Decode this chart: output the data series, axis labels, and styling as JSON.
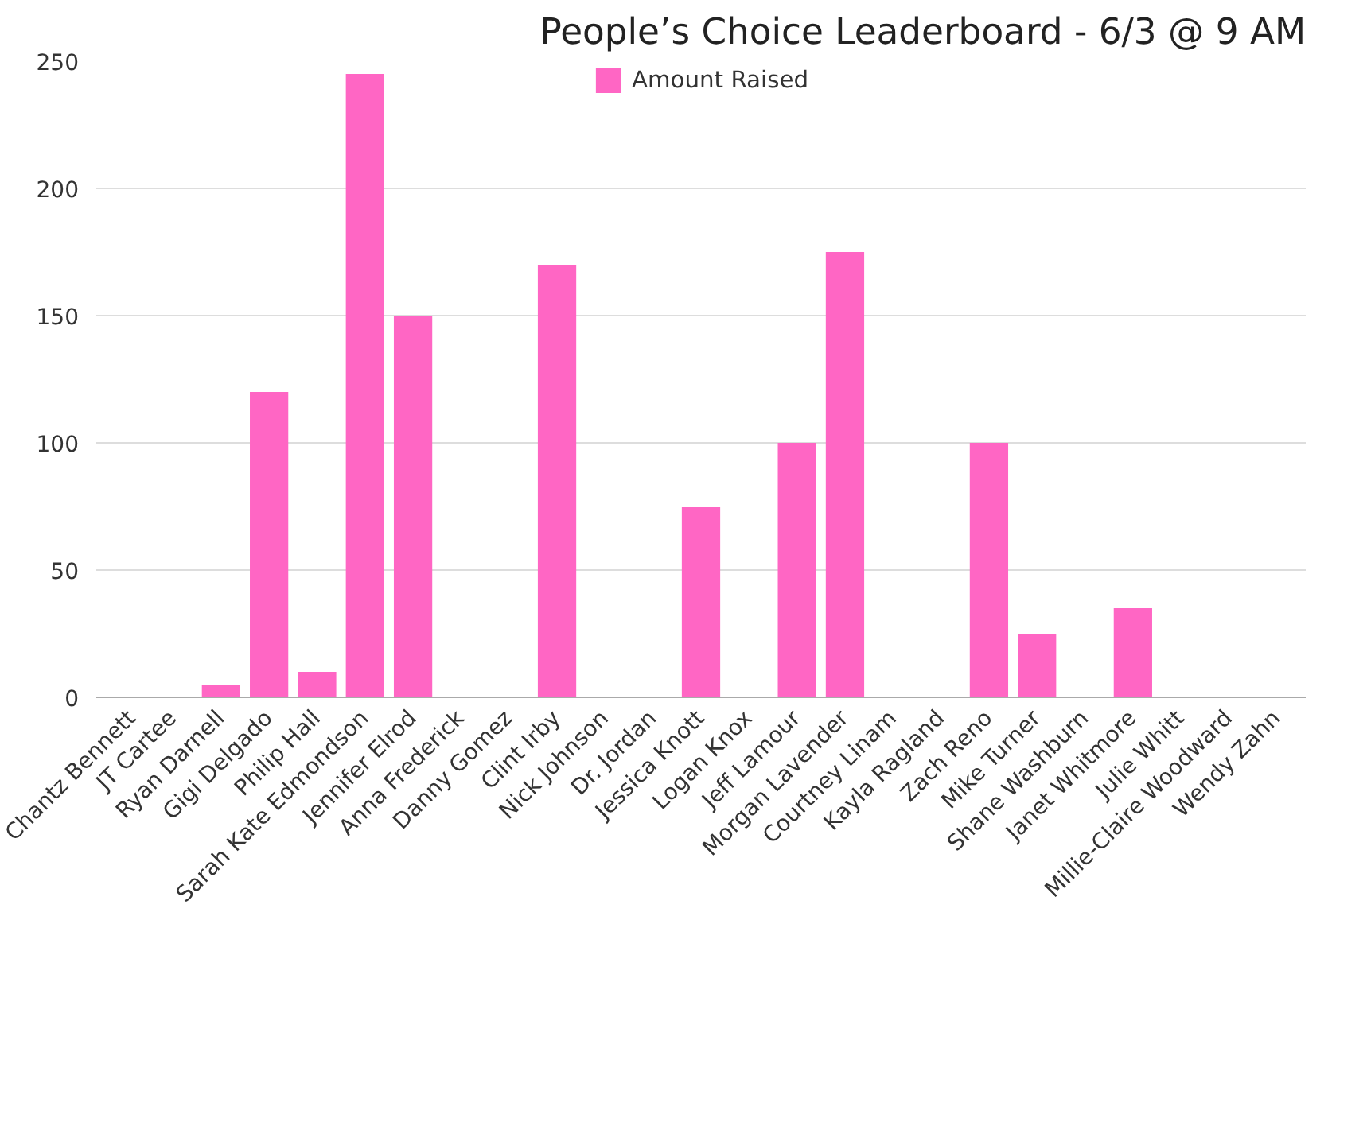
{
  "chart_data": {
    "type": "bar",
    "title": "People’s Choice Leaderboard - 6/3 @ 9 AM",
    "categories": [
      "Chantz Bennett",
      "JT Cartee",
      "Ryan Darnell",
      "Gigi Delgado",
      "Philip Hall",
      "Sarah Kate Edmondson",
      "Jennifer Elrod",
      "Anna Frederick",
      "Danny Gomez",
      "Clint Irby",
      "Nick Johnson",
      "Dr. Jordan",
      "Jessica Knott",
      "Logan Knox",
      "Jeff Lamour",
      "Morgan Lavender",
      "Courtney Linam",
      "Kayla Ragland",
      "Zach Reno",
      "Mike Turner",
      "Shane Washburn",
      "Janet Whitmore",
      "Julie Whitt",
      "Millie-Claire Woodward",
      "Wendy Zahn"
    ],
    "series": [
      {
        "name": "Amount Raised",
        "color": "#ff66c4",
        "values": [
          0,
          0,
          5,
          120,
          10,
          245,
          150,
          0,
          0,
          170,
          0,
          0,
          75,
          0,
          100,
          175,
          0,
          0,
          100,
          25,
          0,
          35,
          0,
          0,
          0
        ]
      }
    ],
    "ylim": [
      0,
      250
    ],
    "yticks": [
      0,
      50,
      100,
      150,
      200,
      250
    ],
    "grid": "y",
    "legend": "top"
  }
}
